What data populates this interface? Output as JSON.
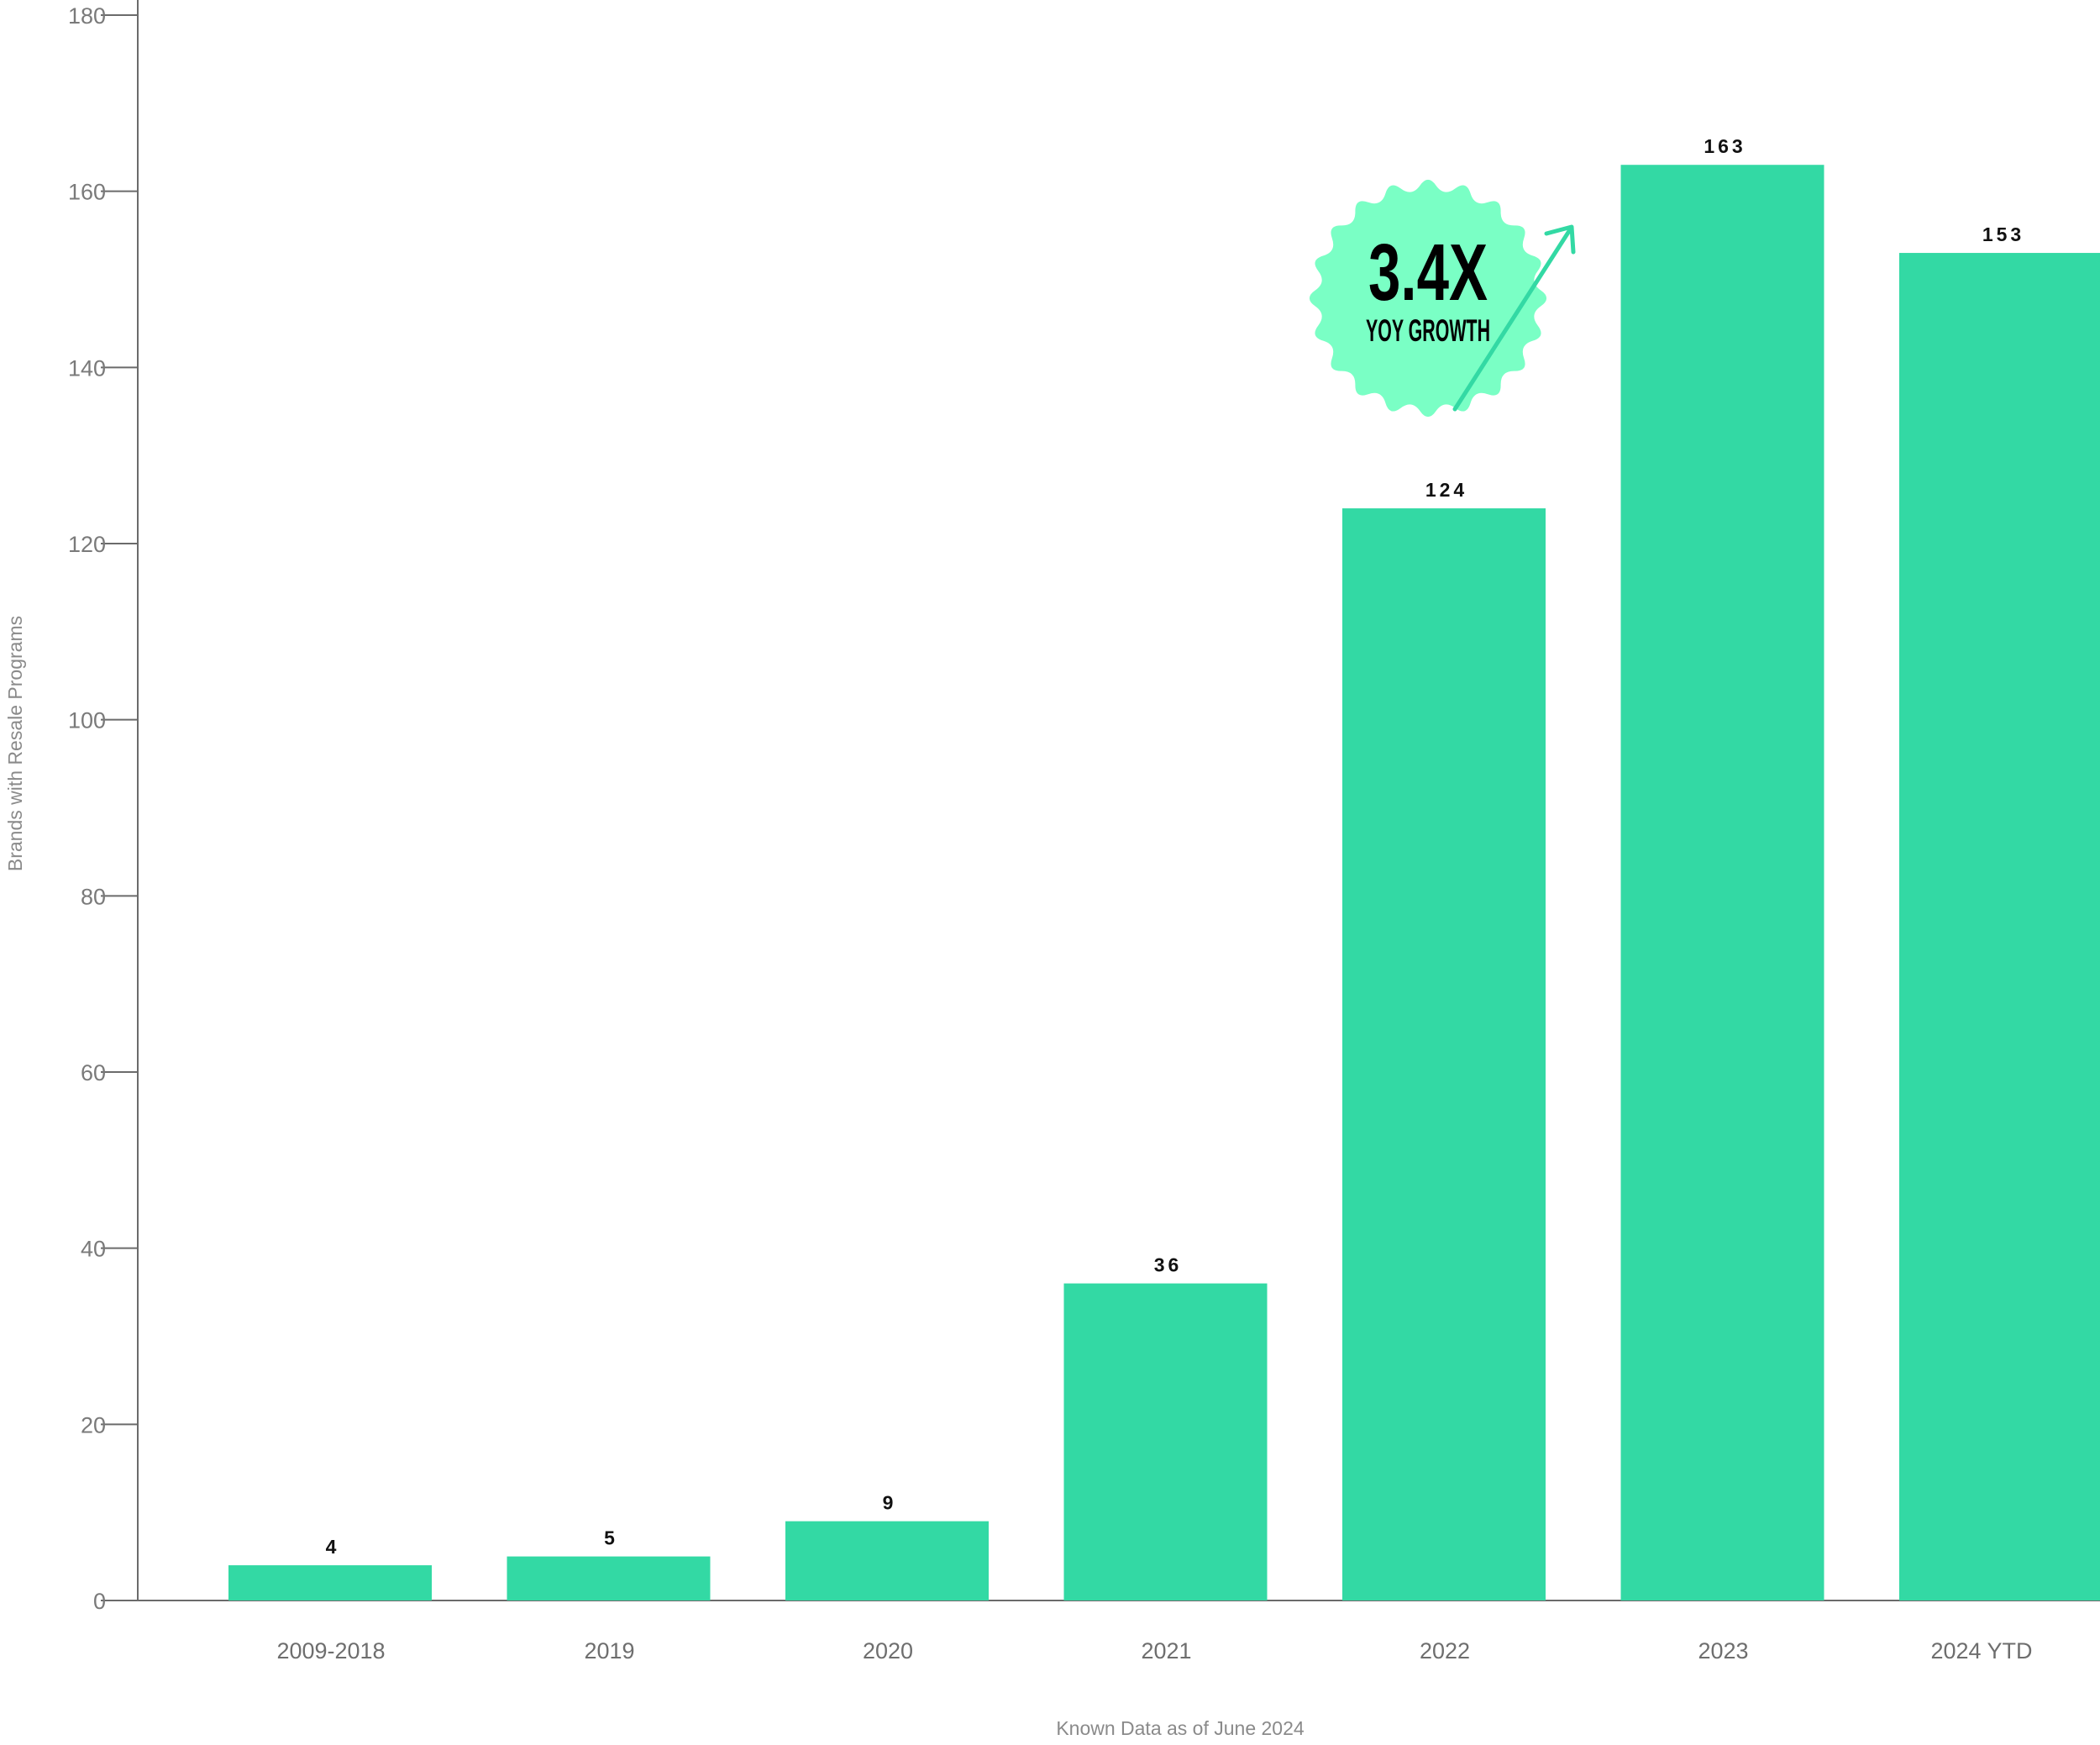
{
  "chart_data": {
    "type": "bar",
    "categories": [
      "2009-2018",
      "2019",
      "2020",
      "2021",
      "2022",
      "2023",
      "2024 YTD"
    ],
    "values": [
      4,
      5,
      9,
      36,
      124,
      163,
      153
    ],
    "data_labels": [
      "4",
      "5",
      "9",
      "36",
      "124",
      "163",
      "153"
    ],
    "xlabel": "Known Data as of June 2024",
    "ylabel": "Brands with Resale Programs",
    "ylim": [
      0,
      180
    ],
    "yticks": [
      0,
      20,
      40,
      60,
      80,
      100,
      120,
      140,
      160,
      180
    ],
    "grid": false,
    "legend": "none",
    "bar_color": "#33d9a4",
    "annotation": {
      "main_text": "3.4X",
      "sub_text": "YOY GROWTH",
      "fill_color": "#7affc5",
      "arrow_color": "#33d9a4"
    }
  }
}
